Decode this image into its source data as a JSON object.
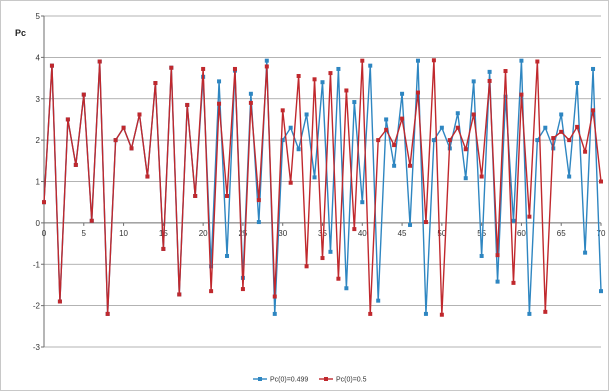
{
  "chart_data": {
    "type": "line",
    "title": "",
    "xlabel": "",
    "ylabel": "Pc",
    "xlim": [
      0,
      70
    ],
    "ylim": [
      -3,
      5
    ],
    "xticks": [
      "0",
      "5",
      "10",
      "15",
      "20",
      "25",
      "30",
      "35",
      "40",
      "45",
      "50",
      "55",
      "60",
      "65",
      "70"
    ],
    "yticks": [
      "5",
      "4",
      "3",
      "2",
      "1",
      "0",
      "-1",
      "-2",
      "-3"
    ],
    "grid": true,
    "legend_position": "bottom",
    "x": [
      0,
      1,
      2,
      3,
      4,
      5,
      6,
      7,
      8,
      9,
      10,
      11,
      12,
      13,
      14,
      15,
      16,
      17,
      18,
      19,
      20,
      21,
      22,
      23,
      24,
      25,
      26,
      27,
      28,
      29,
      30,
      31,
      32,
      33,
      34,
      35,
      36,
      37,
      38,
      39,
      40,
      41,
      42,
      43,
      44,
      45,
      46,
      47,
      48,
      49,
      50,
      51,
      52,
      53,
      54,
      55,
      56,
      57,
      58,
      59,
      60,
      61,
      62,
      63,
      64,
      65,
      66,
      67,
      68,
      69,
      70
    ],
    "series": [
      {
        "name": "Pc(0)=0.499",
        "color": "#2e86c1",
        "values": [
          0.5,
          3.8,
          -1.9,
          2.5,
          1.4,
          3.1,
          0.05,
          3.9,
          -2.2,
          2.0,
          2.3,
          1.8,
          2.62,
          1.12,
          3.38,
          -0.63,
          3.75,
          -1.73,
          2.85,
          0.65,
          3.53,
          -1.05,
          3.42,
          -0.8,
          3.68,
          -1.33,
          3.12,
          0.02,
          3.92,
          -2.2,
          2.0,
          2.3,
          1.78,
          2.62,
          1.1,
          3.4,
          -0.7,
          3.72,
          -1.58,
          2.92,
          0.5,
          3.8,
          -1.88,
          2.5,
          1.38,
          3.12,
          -0.05,
          3.92,
          -2.2,
          2.0,
          2.3,
          1.8,
          2.65,
          1.08,
          3.42,
          -0.8,
          3.65,
          -1.42,
          3.05,
          0.05,
          3.92,
          -2.2,
          2.0,
          2.3,
          1.8,
          2.62,
          1.12,
          3.38,
          -0.72,
          3.72,
          -1.65
        ]
      },
      {
        "name": "Pc(0)=0.5",
        "color": "#c0282d",
        "values": [
          0.5,
          3.8,
          -1.9,
          2.5,
          1.4,
          3.1,
          0.05,
          3.9,
          -2.2,
          2.0,
          2.3,
          1.8,
          2.62,
          1.12,
          3.38,
          -0.63,
          3.75,
          -1.73,
          2.85,
          0.65,
          3.72,
          -1.65,
          2.88,
          0.65,
          3.72,
          -1.6,
          2.9,
          0.55,
          3.78,
          -1.78,
          2.72,
          0.97,
          3.55,
          -1.05,
          3.47,
          -0.85,
          3.62,
          -1.35,
          3.2,
          -0.15,
          3.92,
          -2.2,
          2.0,
          2.25,
          1.88,
          2.52,
          1.38,
          3.15,
          0.02,
          3.93,
          -2.22,
          2.0,
          2.3,
          1.78,
          2.62,
          1.12,
          3.43,
          -0.78,
          3.67,
          -1.45,
          3.1,
          0.15,
          3.9,
          -2.15,
          2.05,
          2.2,
          2.0,
          2.32,
          1.72,
          2.72,
          1.0
        ]
      }
    ]
  }
}
